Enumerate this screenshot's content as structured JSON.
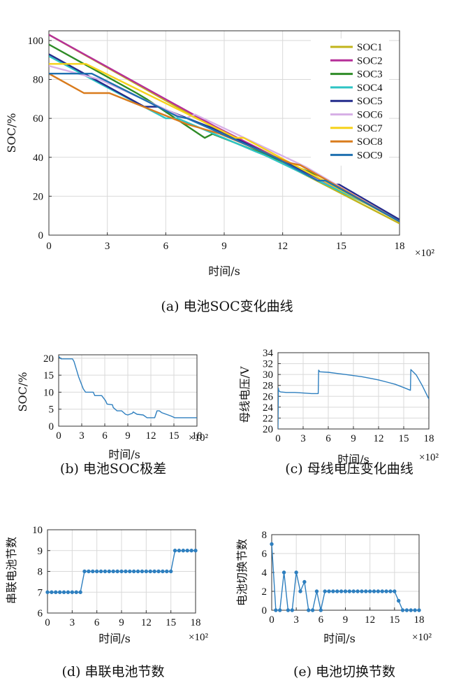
{
  "chart_data": [
    {
      "type": "line",
      "caption": "(a) 电池SOC变化曲线",
      "xlabel": "时间/s",
      "ylabel": "SOC/%",
      "x_multiplier": "×10²",
      "xlim": [
        0,
        18
      ],
      "ylim": [
        0,
        105
      ],
      "xticks": [
        0,
        3,
        6,
        9,
        12,
        15,
        18
      ],
      "yticks": [
        0,
        20,
        40,
        60,
        80,
        100
      ],
      "grid": true,
      "legend_position": "top-right",
      "series": [
        {
          "name": "SOC1",
          "color": "#c2b41b",
          "x": [
            0,
            8.5,
            18
          ],
          "y": [
            103,
            55,
            6
          ]
        },
        {
          "name": "SOC2",
          "color": "#b62f98",
          "x": [
            0,
            8.5,
            18
          ],
          "y": [
            103,
            56,
            8
          ]
        },
        {
          "name": "SOC3",
          "color": "#2e8b26",
          "x": [
            0,
            4.5,
            5.0,
            8.0,
            8.4,
            14.0,
            18
          ],
          "y": [
            98,
            73,
            70,
            50,
            52,
            30,
            7
          ]
        },
        {
          "name": "SOC4",
          "color": "#2ec4c4",
          "x": [
            0,
            2.6,
            6.0,
            6.6,
            10.6,
            11.1,
            18
          ],
          "y": [
            92,
            78,
            60,
            60,
            43,
            41,
            8
          ]
        },
        {
          "name": "SOC5",
          "color": "#232c8c",
          "x": [
            0,
            4.9,
            5.6,
            8.9,
            14.5,
            14.9,
            18
          ],
          "y": [
            93,
            66,
            66,
            53,
            26,
            26,
            8
          ]
        },
        {
          "name": "SOC6",
          "color": "#d7b0e6",
          "x": [
            0,
            2.6,
            7.0,
            7.5,
            13.2,
            18
          ],
          "y": [
            87,
            80,
            60,
            62,
            35,
            7
          ]
        },
        {
          "name": "SOC7",
          "color": "#f6d21a",
          "x": [
            0,
            1.9,
            9.6,
            10.0,
            18
          ],
          "y": [
            88,
            88,
            50,
            50,
            7
          ]
        },
        {
          "name": "SOC8",
          "color": "#d97b1c",
          "x": [
            0,
            1.8,
            3.1,
            7.1,
            8.8,
            12.4,
            12.9,
            18
          ],
          "y": [
            83,
            73,
            73,
            57,
            52,
            37,
            36,
            7
          ]
        },
        {
          "name": "SOC9",
          "color": "#1f70b0",
          "x": [
            0,
            2.2,
            6.6,
            7.1,
            11.6,
            13.8,
            14.2,
            18
          ],
          "y": [
            83,
            83,
            61,
            60,
            40,
            28,
            28,
            7
          ]
        }
      ]
    },
    {
      "type": "line",
      "caption": "(b) 电池SOC极差",
      "xlabel": "时间/s",
      "ylabel": "SOC/%",
      "x_multiplier": "×10²",
      "xlim": [
        0,
        18
      ],
      "ylim": [
        0,
        21
      ],
      "xticks": [
        0,
        3,
        6,
        9,
        12,
        15,
        18
      ],
      "yticks": [
        0,
        5,
        10,
        15,
        20
      ],
      "grid": true,
      "series": [
        {
          "name": "",
          "color": "#2e7fbf",
          "x": [
            0,
            0.3,
            1.8,
            2.0,
            2.6,
            3.2,
            3.5,
            4.5,
            4.7,
            5.6,
            6.1,
            6.3,
            7.0,
            7.1,
            7.6,
            8.2,
            8.7,
            9.0,
            9.6,
            9.7,
            10.2,
            11.0,
            11.5,
            11.9,
            12.3,
            12.5,
            12.8,
            13.1,
            13.4,
            14.0,
            14.6,
            15.1,
            16.0,
            18
          ],
          "y": [
            20.5,
            19.8,
            19.8,
            19.0,
            14.5,
            11.0,
            10.0,
            10.0,
            9.0,
            9.0,
            7.5,
            6.5,
            6.3,
            5.5,
            4.5,
            4.5,
            3.5,
            3.3,
            3.8,
            4.2,
            3.5,
            3.3,
            2.5,
            2.5,
            2.5,
            2.5,
            4.5,
            4.5,
            4.0,
            3.5,
            3.0,
            2.5,
            2.5,
            2.5
          ]
        }
      ]
    },
    {
      "type": "line",
      "caption": "(c) 母线电压变化曲线",
      "xlabel": "时间/s",
      "ylabel": "母线电压/V",
      "x_multiplier": "×10²",
      "xlim": [
        0,
        18
      ],
      "ylim": [
        20,
        34
      ],
      "xticks": [
        0,
        3,
        6,
        9,
        12,
        15,
        18
      ],
      "yticks": [
        20,
        22,
        24,
        26,
        28,
        30,
        32,
        34
      ],
      "grid": true,
      "series": [
        {
          "name": "",
          "color": "#2e7fbf",
          "x": [
            0,
            0.05,
            0.1,
            0.3,
            1.0,
            2.0,
            3.0,
            4.0,
            4.8,
            4.85,
            5.0,
            6.0,
            7.0,
            8.0,
            9.0,
            10.0,
            11.0,
            12.0,
            13.0,
            14.0,
            15.0,
            15.8,
            15.85,
            16.5,
            17.2,
            18
          ],
          "y": [
            20,
            27.5,
            27.0,
            26.8,
            26.7,
            26.7,
            26.6,
            26.5,
            26.5,
            30.8,
            30.5,
            30.4,
            30.2,
            30.0,
            29.8,
            29.6,
            29.3,
            29.0,
            28.6,
            28.2,
            27.6,
            27.1,
            30.9,
            29.9,
            28.0,
            25.5
          ]
        }
      ]
    },
    {
      "type": "line",
      "caption": "(d) 串联电池节数",
      "xlabel": "时间/s",
      "ylabel": "串联电池节数",
      "x_multiplier": "×10²",
      "xlim": [
        0,
        18
      ],
      "ylim": [
        6,
        10
      ],
      "xticks": [
        0,
        3,
        6,
        9,
        12,
        15,
        18
      ],
      "yticks": [
        6,
        7,
        8,
        9,
        10
      ],
      "grid": true,
      "markers": true,
      "series": [
        {
          "name": "",
          "color": "#2e7fbf",
          "x": [
            0,
            0.5,
            1.0,
            1.5,
            2.0,
            2.5,
            3.0,
            3.5,
            4.0,
            4.5,
            5.0,
            5.5,
            6.0,
            6.5,
            7.0,
            7.5,
            8.0,
            8.5,
            9.0,
            9.5,
            10.0,
            10.5,
            11.0,
            11.5,
            12.0,
            12.5,
            13.0,
            13.5,
            14.0,
            14.5,
            15.0,
            15.5,
            16.0,
            16.5,
            17.0,
            17.5,
            18.0
          ],
          "y": [
            7,
            7,
            7,
            7,
            7,
            7,
            7,
            7,
            7,
            8,
            8,
            8,
            8,
            8,
            8,
            8,
            8,
            8,
            8,
            8,
            8,
            8,
            8,
            8,
            8,
            8,
            8,
            8,
            8,
            8,
            8,
            9,
            9,
            9,
            9,
            9,
            9
          ]
        }
      ]
    },
    {
      "type": "line",
      "caption": "(e) 电池切换节数",
      "xlabel": "时间/s",
      "ylabel": "电池切换节数",
      "x_multiplier": "×10²",
      "xlim": [
        0,
        18
      ],
      "ylim": [
        0,
        8
      ],
      "xticks": [
        0,
        3,
        6,
        9,
        12,
        15,
        18
      ],
      "yticks": [
        0,
        2,
        4,
        6,
        8
      ],
      "grid": true,
      "markers": true,
      "series": [
        {
          "name": "",
          "color": "#2e7fbf",
          "x": [
            0,
            0.5,
            1.0,
            1.5,
            2.0,
            2.5,
            3.0,
            3.5,
            4.0,
            4.5,
            5.0,
            5.5,
            6.0,
            6.5,
            7.0,
            7.5,
            8.0,
            8.5,
            9.0,
            9.5,
            10.0,
            10.5,
            11.0,
            11.5,
            12.0,
            12.5,
            13.0,
            13.5,
            14.0,
            14.5,
            15.0,
            15.5,
            16.0,
            16.5,
            17.0,
            17.5,
            18.0
          ],
          "y": [
            7,
            0,
            0,
            4,
            0,
            0,
            4,
            2,
            3,
            0,
            0,
            2,
            0,
            2,
            2,
            2,
            2,
            2,
            2,
            2,
            2,
            2,
            2,
            2,
            2,
            2,
            2,
            2,
            2,
            2,
            2,
            1,
            0,
            0,
            0,
            0,
            0
          ]
        }
      ]
    }
  ]
}
